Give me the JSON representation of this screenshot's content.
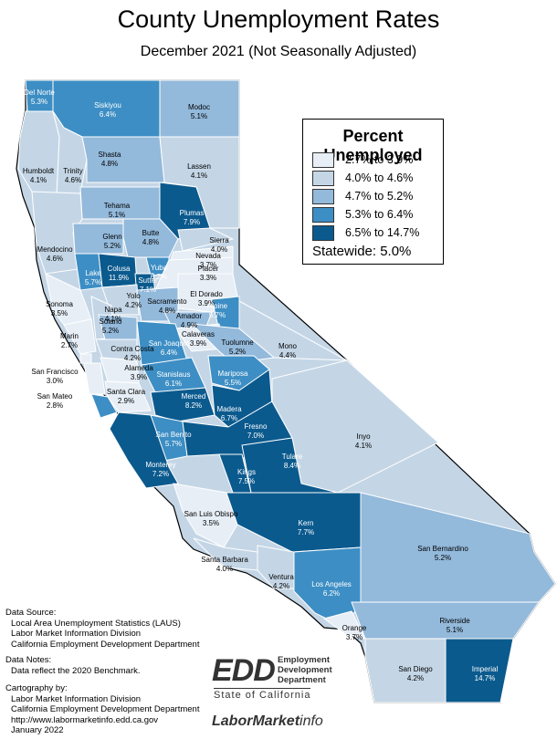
{
  "title": "County Unemployment Rates",
  "subtitle": "December 2021 (Not Seasonally Adjusted)",
  "legend": {
    "title": "Percent Unemployed",
    "classes": [
      {
        "label": "2.7% to 3.9%",
        "color": "#e7eef6"
      },
      {
        "label": "4.0% to 4.6%",
        "color": "#c4d6e6"
      },
      {
        "label": "4.7% to 5.2%",
        "color": "#93b9db"
      },
      {
        "label": "5.3% to 6.4%",
        "color": "#3d8ec4"
      },
      {
        "label": "6.5% to 14.7%",
        "color": "#0b5a8e"
      }
    ],
    "statewide": "Statewide: 5.0%"
  },
  "counties": [
    {
      "name": "Del Norte",
      "rate": "5.3%",
      "class": 3
    },
    {
      "name": "Siskiyou",
      "rate": "6.4%",
      "class": 3
    },
    {
      "name": "Modoc",
      "rate": "5.1%",
      "class": 2
    },
    {
      "name": "Humboldt",
      "rate": "4.1%",
      "class": 1
    },
    {
      "name": "Trinity",
      "rate": "4.6%",
      "class": 1
    },
    {
      "name": "Shasta",
      "rate": "4.8%",
      "class": 2
    },
    {
      "name": "Lassen",
      "rate": "4.1%",
      "class": 1
    },
    {
      "name": "Tehama",
      "rate": "5.1%",
      "class": 2
    },
    {
      "name": "Plumas",
      "rate": "7.9%",
      "class": 4
    },
    {
      "name": "Mendocino",
      "rate": "4.6%",
      "class": 1
    },
    {
      "name": "Glenn",
      "rate": "5.2%",
      "class": 2
    },
    {
      "name": "Butte",
      "rate": "4.8%",
      "class": 2
    },
    {
      "name": "Sierra",
      "rate": "4.0%",
      "class": 1
    },
    {
      "name": "Nevada",
      "rate": "3.7%",
      "class": 0
    },
    {
      "name": "Lake",
      "rate": "5.7%",
      "class": 3
    },
    {
      "name": "Colusa",
      "rate": "11.9%",
      "class": 4
    },
    {
      "name": "Yuba",
      "rate": "6.2%",
      "class": 3
    },
    {
      "name": "Sutter",
      "rate": "7.1%",
      "class": 4
    },
    {
      "name": "Placer",
      "rate": "3.3%",
      "class": 0
    },
    {
      "name": "Sonoma",
      "rate": "3.5%",
      "class": 0
    },
    {
      "name": "Yolo",
      "rate": "4.2%",
      "class": 1
    },
    {
      "name": "Napa",
      "rate": "4.1%",
      "class": 1
    },
    {
      "name": "Sacramento",
      "rate": "4.8%",
      "class": 2
    },
    {
      "name": "El Dorado",
      "rate": "3.9%",
      "class": 0
    },
    {
      "name": "Solano",
      "rate": "5.2%",
      "class": 2
    },
    {
      "name": "Amador",
      "rate": "4.9%",
      "class": 2
    },
    {
      "name": "Alpine",
      "rate": "5.7%",
      "class": 3
    },
    {
      "name": "Marin",
      "rate": "2.7%",
      "class": 0
    },
    {
      "name": "Contra Costa",
      "rate": "4.2%",
      "class": 1
    },
    {
      "name": "Calaveras",
      "rate": "3.9%",
      "class": 0
    },
    {
      "name": "Tuolumne",
      "rate": "5.2%",
      "class": 2
    },
    {
      "name": "Mono",
      "rate": "4.4%",
      "class": 1
    },
    {
      "name": "San Joaquin",
      "rate": "6.4%",
      "class": 3
    },
    {
      "name": "San Francisco",
      "rate": "3.0%",
      "class": 0
    },
    {
      "name": "Alameda",
      "rate": "3.9%",
      "class": 0
    },
    {
      "name": "Stanislaus",
      "rate": "6.1%",
      "class": 3
    },
    {
      "name": "Mariposa",
      "rate": "5.5%",
      "class": 3
    },
    {
      "name": "San Mateo",
      "rate": "2.8%",
      "class": 0
    },
    {
      "name": "Santa Clara",
      "rate": "2.9%",
      "class": 0
    },
    {
      "name": "Merced",
      "rate": "8.2%",
      "class": 4
    },
    {
      "name": "Madera",
      "rate": "6.7%",
      "class": 4
    },
    {
      "name": "Santa Cruz",
      "rate": "5.4%",
      "class": 3
    },
    {
      "name": "San Benito",
      "rate": "5.7%",
      "class": 3
    },
    {
      "name": "Fresno",
      "rate": "7.0%",
      "class": 4
    },
    {
      "name": "Inyo",
      "rate": "4.1%",
      "class": 1
    },
    {
      "name": "Monterey",
      "rate": "7.2%",
      "class": 4
    },
    {
      "name": "Kings",
      "rate": "7.5%",
      "class": 4
    },
    {
      "name": "Tulare",
      "rate": "8.4%",
      "class": 4
    },
    {
      "name": "San Luis Obispo",
      "rate": "3.5%",
      "class": 0
    },
    {
      "name": "Kern",
      "rate": "7.7%",
      "class": 4
    },
    {
      "name": "San Bernardino",
      "rate": "5.2%",
      "class": 2
    },
    {
      "name": "Santa Barbara",
      "rate": "4.0%",
      "class": 1
    },
    {
      "name": "Ventura",
      "rate": "4.2%",
      "class": 1
    },
    {
      "name": "Los Angeles",
      "rate": "6.2%",
      "class": 3
    },
    {
      "name": "Riverside",
      "rate": "5.1%",
      "class": 2
    },
    {
      "name": "Orange",
      "rate": "3.7%",
      "class": 0
    },
    {
      "name": "San Diego",
      "rate": "4.2%",
      "class": 1
    },
    {
      "name": "Imperial",
      "rate": "14.7%",
      "class": 4
    }
  ],
  "footer": {
    "source_heading": "Data Source:",
    "source_lines": [
      "Local Area Unemployment Statistics (LAUS)",
      "Labor Market Information Division",
      "California Employment Development Department"
    ],
    "notes_heading": "Data Notes:",
    "notes_lines": [
      "Data reflect the 2020 Benchmark."
    ],
    "carto_heading": "Cartography by:",
    "carto_lines": [
      "Labor Market Information Division",
      "California Employment Development Department",
      "http://www.labormarketinfo.edd.ca.gov",
      "January 2022"
    ]
  },
  "logo": {
    "edd": "EDD",
    "lines": [
      "Employment",
      "Development",
      "Department"
    ],
    "state": "State of California",
    "lmi_bold": "LaborMarket",
    "lmi_light": "info"
  }
}
